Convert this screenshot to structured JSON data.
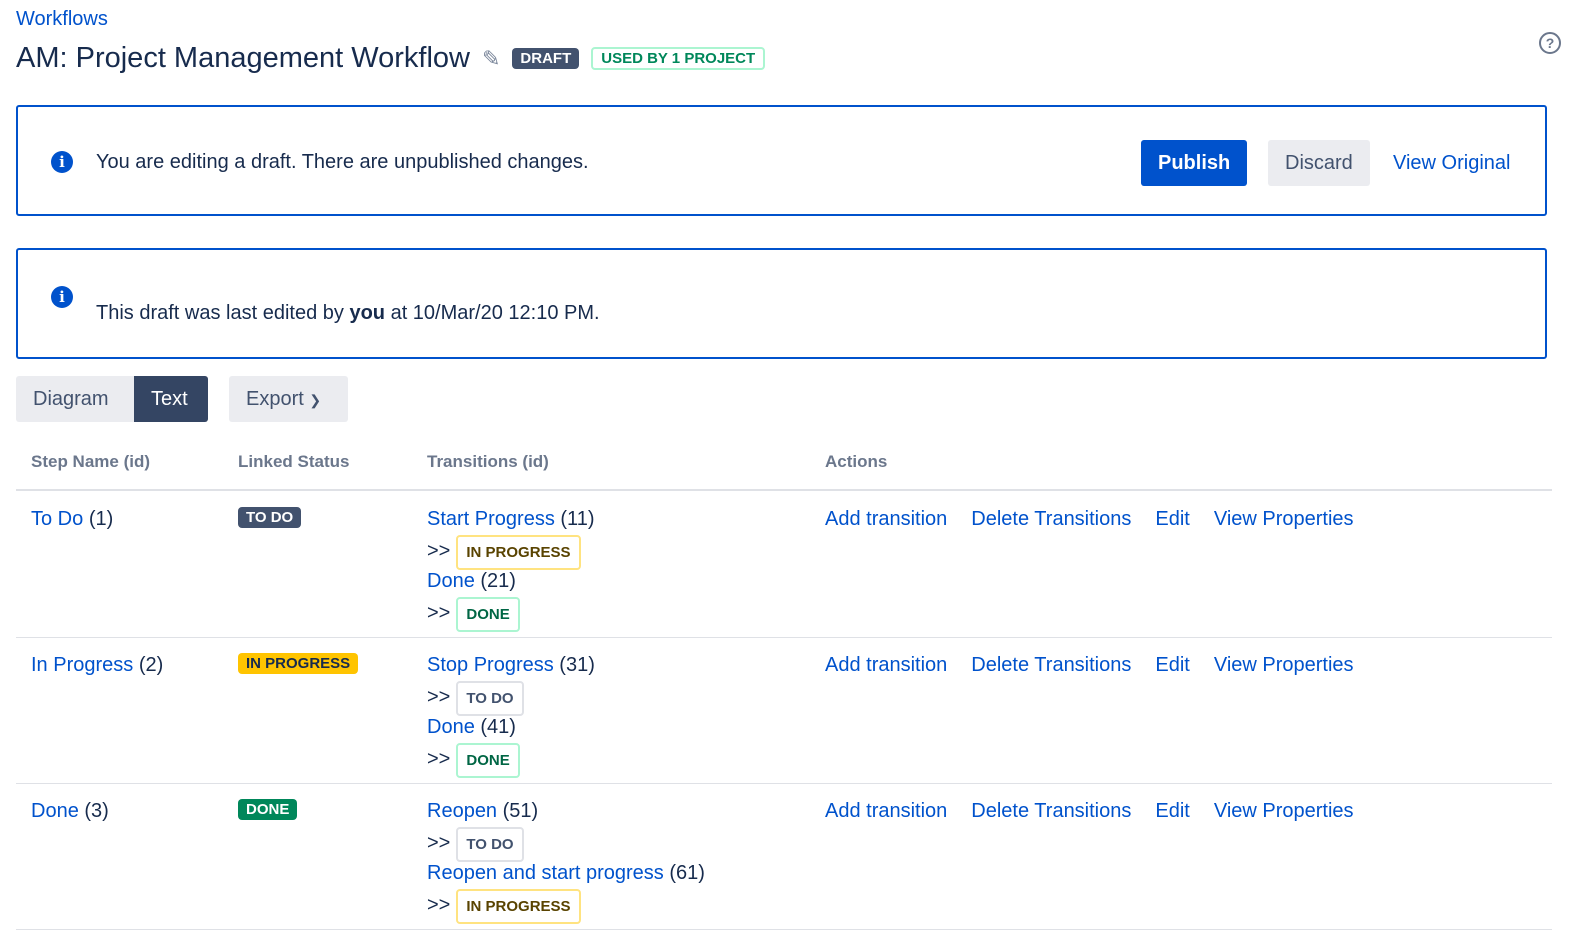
{
  "breadcrumb": "Workflows",
  "title": "AM: Project Management Workflow",
  "badges": {
    "draft": "DRAFT",
    "used": "USED BY 1 PROJECT"
  },
  "banner1": {
    "text": "You are editing a draft. There are unpublished changes.",
    "publish": "Publish",
    "discard": "Discard",
    "view_original": "View Original"
  },
  "banner2": {
    "prefix": "This draft was last edited by ",
    "user": "you",
    "suffix": " at 10/Mar/20 12:10 PM."
  },
  "tabs": {
    "diagram": "Diagram",
    "text": "Text",
    "export": "Export"
  },
  "headers": {
    "step": "Step Name (id)",
    "status": "Linked Status",
    "transitions": "Transitions (id)",
    "actions": "Actions"
  },
  "actions": {
    "add": "Add transition",
    "delete": "Delete Transitions",
    "edit": "Edit",
    "props": "View Properties"
  },
  "arrow": ">>",
  "rows": [
    {
      "step": "To Do",
      "id": "(1)",
      "status": "TO DO",
      "t": [
        {
          "name": "Start Progress",
          "id": "(11)",
          "target": "IN PROGRESS"
        },
        {
          "name": "Done",
          "id": "(21)",
          "target": "DONE"
        }
      ]
    },
    {
      "step": "In Progress",
      "id": "(2)",
      "status": "IN PROGRESS",
      "t": [
        {
          "name": "Stop Progress",
          "id": "(31)",
          "target": "TO DO"
        },
        {
          "name": "Done",
          "id": "(41)",
          "target": "DONE"
        }
      ]
    },
    {
      "step": "Done",
      "id": "(3)",
      "status": "DONE",
      "t": [
        {
          "name": "Reopen",
          "id": "(51)",
          "target": "TO DO"
        },
        {
          "name": "Reopen and start progress",
          "id": "(61)",
          "target": "IN PROGRESS"
        }
      ]
    }
  ]
}
